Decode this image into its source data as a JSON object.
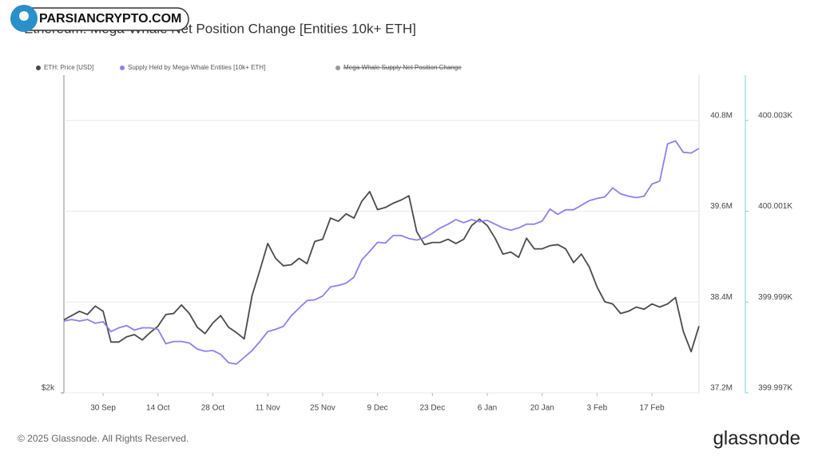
{
  "watermark": "PARSIANCRYPTO.COM",
  "footer": {
    "copyright": "© 2025 Glassnode. All Rights Reserved.",
    "brand": "glassnode"
  },
  "chart_data": {
    "type": "line",
    "title": "Ethereum: Mega-Whale Net Position Change [Entities 10k+ ETH]",
    "categories": [
      null,
      null,
      null,
      null,
      null,
      "30 Sep",
      null,
      null,
      null,
      null,
      null,
      null,
      "14 Oct",
      null,
      null,
      null,
      null,
      null,
      null,
      "28 Oct",
      null,
      null,
      null,
      null,
      null,
      null,
      "11 Nov",
      null,
      null,
      null,
      null,
      null,
      null,
      "25 Nov",
      null,
      null,
      null,
      null,
      null,
      null,
      "9 Dec",
      null,
      null,
      null,
      null,
      null,
      null,
      "23 Dec",
      null,
      null,
      null,
      null,
      null,
      null,
      "6 Jan",
      null,
      null,
      null,
      null,
      null,
      null,
      "20 Jan",
      null,
      null,
      null,
      null,
      null,
      null,
      "3 Feb",
      null,
      null,
      null,
      null,
      null,
      null,
      "17 Feb",
      null,
      null,
      null,
      null,
      null,
      null
    ],
    "series": [
      {
        "name": "ETH: Price [USD]",
        "color": "#4a4a4a",
        "axis": "y",
        "values": [
          2690,
          2730,
          2770,
          2740,
          2820,
          2770,
          2480,
          2480,
          2530,
          2550,
          2500,
          2570,
          2630,
          2740,
          2750,
          2830,
          2750,
          2620,
          2560,
          2660,
          2730,
          2620,
          2570,
          2510,
          2920,
          3160,
          3410,
          3270,
          3200,
          3210,
          3270,
          3220,
          3430,
          3450,
          3650,
          3620,
          3690,
          3650,
          3810,
          3900,
          3730,
          3750,
          3790,
          3820,
          3860,
          3520,
          3400,
          3420,
          3420,
          3450,
          3410,
          3450,
          3580,
          3640,
          3580,
          3460,
          3310,
          3330,
          3280,
          3460,
          3360,
          3360,
          3390,
          3400,
          3360,
          3230,
          3310,
          3190,
          3000,
          2860,
          2840,
          2750,
          2770,
          2810,
          2790,
          2840,
          2810,
          2840,
          2900,
          2580,
          2390,
          2630
        ]
      },
      {
        "name": "Supply Held by Mega-Whale Entities [10k+ ETH]",
        "color": "#8f7ef2",
        "axis": "y2",
        "values": [
          38150000,
          38170000,
          38150000,
          38170000,
          38120000,
          38140000,
          38010000,
          38060000,
          38090000,
          38030000,
          38060000,
          38060000,
          38040000,
          37850000,
          37880000,
          37880000,
          37860000,
          37780000,
          37750000,
          37760000,
          37710000,
          37600000,
          37580000,
          37670000,
          37760000,
          37880000,
          38010000,
          38040000,
          38080000,
          38220000,
          38320000,
          38420000,
          38430000,
          38480000,
          38600000,
          38620000,
          38650000,
          38730000,
          38960000,
          39070000,
          39190000,
          39180000,
          39280000,
          39280000,
          39240000,
          39220000,
          39250000,
          39310000,
          39380000,
          39430000,
          39490000,
          39450000,
          39490000,
          39460000,
          39480000,
          39430000,
          39380000,
          39350000,
          39380000,
          39430000,
          39430000,
          39470000,
          39630000,
          39560000,
          39620000,
          39620000,
          39680000,
          39740000,
          39770000,
          39790000,
          39910000,
          39830000,
          39800000,
          39780000,
          39800000,
          39960000,
          40000000,
          40490000,
          40530000,
          40380000,
          40370000,
          40430000
        ]
      },
      {
        "name": "Mega-Whale Supply Net Position Change",
        "color": "#9a9a9a",
        "axis": "y3",
        "hidden": true,
        "values": [
          null,
          null,
          null,
          null,
          null,
          null,
          null,
          null,
          null,
          null,
          null,
          null,
          null,
          null,
          null,
          null,
          null,
          null,
          null,
          null,
          null,
          null,
          null,
          null,
          null,
          null,
          null,
          null,
          null,
          null,
          null,
          null,
          null,
          null,
          null,
          null,
          null,
          null,
          null,
          null,
          null,
          null,
          null,
          null,
          null,
          null,
          null,
          null,
          null,
          null,
          null,
          null,
          null,
          null,
          null,
          null,
          null,
          null,
          null,
          null,
          null,
          null,
          null,
          null,
          null,
          null,
          null,
          null,
          null,
          null,
          null,
          null,
          null,
          null,
          null,
          null,
          null,
          null,
          null,
          null,
          null,
          null
        ]
      }
    ],
    "ylim": [
      2000,
      5000
    ],
    "yticks": [
      {
        "value": 2000,
        "label": "$2k"
      }
    ],
    "y2lim": [
      37200000,
      41400000
    ],
    "y2ticks": [
      {
        "value": 37200000,
        "label": "37.2M"
      },
      {
        "value": 38400000,
        "label": "38.4M"
      },
      {
        "value": 39600000,
        "label": "39.6M"
      },
      {
        "value": 40800000,
        "label": "40.8M"
      }
    ],
    "y3lim": [
      399997,
      400004
    ],
    "y3ticks": [
      {
        "value": 399997,
        "label": "399.997K"
      },
      {
        "value": 399999,
        "label": "399.999K"
      },
      {
        "value": 400001,
        "label": "400.001K"
      },
      {
        "value": 400003,
        "label": "400.003K"
      }
    ],
    "grid": true,
    "legend": "top"
  }
}
